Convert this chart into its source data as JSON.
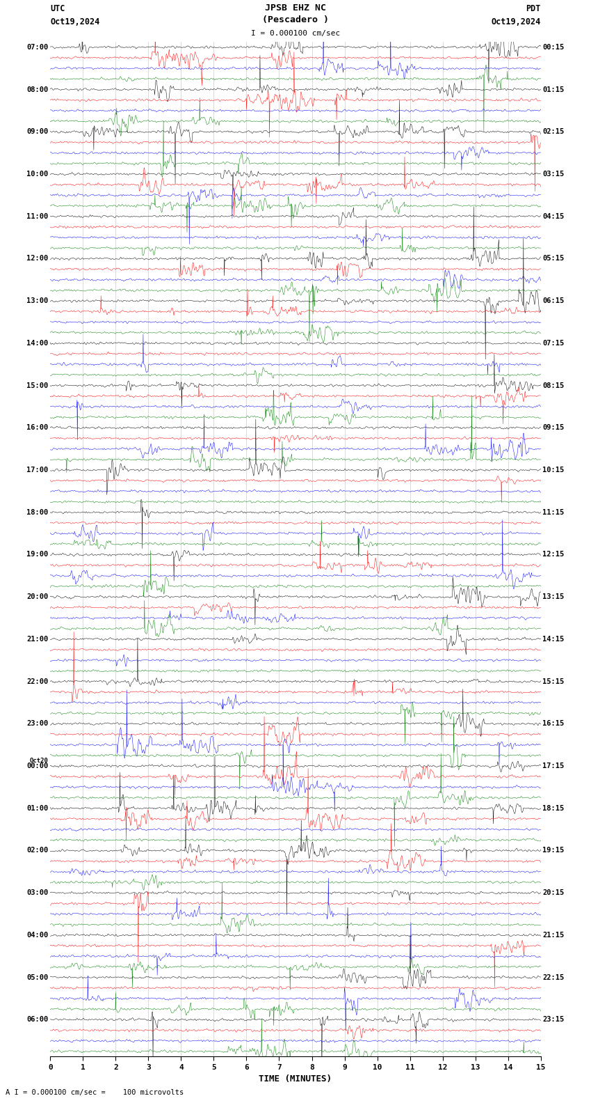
{
  "title_line1": "JPSB EHZ NC",
  "title_line2": "(Pescadero )",
  "scale_label": "I = 0.000100 cm/sec",
  "utc_label": "UTC",
  "utc_date": "Oct19,2024",
  "pdt_label": "PDT",
  "pdt_date": "Oct19,2024",
  "bottom_label": "A I = 0.000100 cm/sec =    100 microvolts",
  "xlabel": "TIME (MINUTES)",
  "bg_color": "#ffffff",
  "trace_colors": [
    "black",
    "red",
    "blue",
    "green"
  ],
  "num_hour_blocks": 24,
  "traces_per_block": 4,
  "left_times_utc": [
    "07:00",
    "08:00",
    "09:00",
    "10:00",
    "11:00",
    "12:00",
    "13:00",
    "14:00",
    "15:00",
    "16:00",
    "17:00",
    "18:00",
    "19:00",
    "20:00",
    "21:00",
    "22:00",
    "23:00",
    "Oct20\n00:00",
    "01:00",
    "02:00",
    "03:00",
    "04:00",
    "05:00",
    "06:00"
  ],
  "right_times_pdt": [
    "00:15",
    "01:15",
    "02:15",
    "03:15",
    "04:15",
    "05:15",
    "06:15",
    "07:15",
    "08:15",
    "09:15",
    "10:15",
    "11:15",
    "12:15",
    "13:15",
    "14:15",
    "15:15",
    "16:15",
    "17:15",
    "18:15",
    "19:15",
    "20:15",
    "21:15",
    "22:15",
    "23:15"
  ],
  "figsize": [
    8.5,
    15.84
  ],
  "dpi": 100,
  "seed": 42
}
